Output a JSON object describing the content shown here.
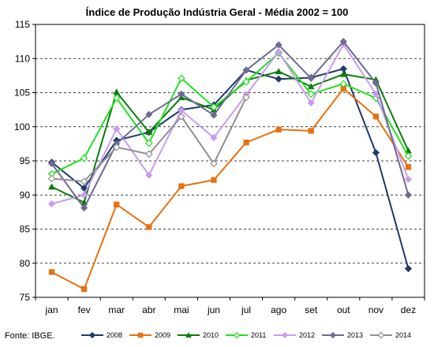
{
  "chart_data": {
    "type": "line",
    "title": "Índice de Produção Indústria Geral - Média 2002 = 100",
    "xlabel": "",
    "ylabel": "",
    "categories": [
      "jan",
      "fev",
      "mar",
      "abr",
      "mai",
      "jun",
      "jul",
      "ago",
      "set",
      "out",
      "nov",
      "dez"
    ],
    "yticks": [
      75,
      80,
      85,
      90,
      95,
      100,
      105,
      110,
      115
    ],
    "ylim": [
      75,
      115
    ],
    "grid": "horizontal dashed",
    "legend_position": "bottom",
    "source": "Fonte: IBGE.",
    "series": [
      {
        "name": "2008",
        "color": "#1f3a6b",
        "marker": "diamond-filled",
        "values": [
          94.8,
          91.0,
          98.0,
          99.2,
          102.5,
          103.2,
          108.3,
          107.0,
          107.2,
          108.5,
          96.2,
          79.2
        ]
      },
      {
        "name": "2009",
        "color": "#e8700e",
        "marker": "square-filled",
        "values": [
          78.7,
          76.2,
          88.6,
          85.3,
          91.3,
          92.2,
          97.7,
          99.6,
          99.4,
          105.6,
          101.5,
          94.1
        ]
      },
      {
        "name": "2010",
        "color": "#0b7d0b",
        "marker": "triangle-filled",
        "values": [
          91.2,
          88.9,
          105.1,
          99.2,
          104.3,
          102.5,
          106.8,
          108.1,
          105.9,
          107.7,
          106.9,
          96.5
        ]
      },
      {
        "name": "2011",
        "color": "#22e022",
        "marker": "diamond-open",
        "values": [
          93.1,
          95.4,
          104.2,
          97.6,
          107.1,
          102.9,
          106.6,
          110.8,
          104.8,
          106.3,
          104.2,
          95.7
        ]
      },
      {
        "name": "2012",
        "color": "#c99cf0",
        "marker": "diamond-filled",
        "values": [
          88.7,
          90.0,
          99.7,
          92.9,
          102.4,
          98.4,
          104.7,
          111.0,
          103.5,
          112.1,
          104.8,
          92.3
        ]
      },
      {
        "name": "2013",
        "color": "#6e6a94",
        "marker": "diamond-filled",
        "values": [
          94.6,
          88.1,
          97.5,
          101.8,
          104.8,
          101.7,
          108.3,
          112.0,
          107.1,
          112.5,
          106.4,
          90.0
        ]
      },
      {
        "name": "2014",
        "color": "#8f8f8f",
        "marker": "diamond-open",
        "values": [
          92.4,
          92.0,
          97.0,
          96.0,
          101.5,
          94.6,
          104.3,
          null,
          null,
          null,
          null,
          null
        ]
      }
    ]
  }
}
